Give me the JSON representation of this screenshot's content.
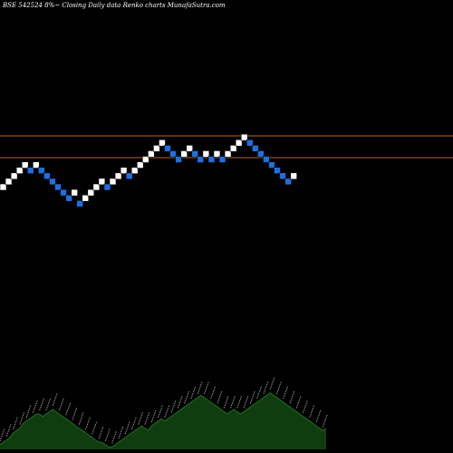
{
  "chart_data": {
    "type": "renko",
    "title": "BSE 542524  8%~ Closing Daily data  Renko  charts MunafaSutra.com",
    "colors": {
      "background": "#000000",
      "up_brick": "#ffffff",
      "down_brick": "#1e6fe0",
      "reference_line": "#b8641e",
      "volume_area": "#0f3d0f",
      "volume_line": "#1f6e1f",
      "label_text": "#dddddd"
    },
    "reference_lines": [
      1.05,
      1.0
    ],
    "bricks": [
      {
        "level": 0,
        "dir": "up"
      },
      {
        "level": 1,
        "dir": "up"
      },
      {
        "level": 2,
        "dir": "up"
      },
      {
        "level": 3,
        "dir": "up"
      },
      {
        "level": 4,
        "dir": "up"
      },
      {
        "level": 3,
        "dir": "down"
      },
      {
        "level": 4,
        "dir": "up"
      },
      {
        "level": 3,
        "dir": "down"
      },
      {
        "level": 2,
        "dir": "down"
      },
      {
        "level": 1,
        "dir": "down"
      },
      {
        "level": 0,
        "dir": "down"
      },
      {
        "level": -1,
        "dir": "down"
      },
      {
        "level": -2,
        "dir": "down"
      },
      {
        "level": -1,
        "dir": "up"
      },
      {
        "level": -3,
        "dir": "down"
      },
      {
        "level": -2,
        "dir": "up"
      },
      {
        "level": -1,
        "dir": "up"
      },
      {
        "level": 0,
        "dir": "up"
      },
      {
        "level": 1,
        "dir": "up"
      },
      {
        "level": 0,
        "dir": "down"
      },
      {
        "level": 1,
        "dir": "up"
      },
      {
        "level": 2,
        "dir": "up"
      },
      {
        "level": 3,
        "dir": "up"
      },
      {
        "level": 2,
        "dir": "down"
      },
      {
        "level": 3,
        "dir": "up"
      },
      {
        "level": 4,
        "dir": "up"
      },
      {
        "level": 5,
        "dir": "up"
      },
      {
        "level": 6,
        "dir": "up"
      },
      {
        "level": 7,
        "dir": "up"
      },
      {
        "level": 8,
        "dir": "up"
      },
      {
        "level": 7,
        "dir": "down"
      },
      {
        "level": 6,
        "dir": "down"
      },
      {
        "level": 5,
        "dir": "down"
      },
      {
        "level": 6,
        "dir": "up"
      },
      {
        "level": 7,
        "dir": "up"
      },
      {
        "level": 6,
        "dir": "down"
      },
      {
        "level": 5,
        "dir": "down"
      },
      {
        "level": 6,
        "dir": "up"
      },
      {
        "level": 5,
        "dir": "down"
      },
      {
        "level": 6,
        "dir": "up"
      },
      {
        "level": 5,
        "dir": "down"
      },
      {
        "level": 6,
        "dir": "up"
      },
      {
        "level": 7,
        "dir": "up"
      },
      {
        "level": 8,
        "dir": "up"
      },
      {
        "level": 9,
        "dir": "up"
      },
      {
        "level": 8,
        "dir": "down"
      },
      {
        "level": 7,
        "dir": "down"
      },
      {
        "level": 6,
        "dir": "down"
      },
      {
        "level": 5,
        "dir": "down"
      },
      {
        "level": 4,
        "dir": "down"
      },
      {
        "level": 3,
        "dir": "down"
      },
      {
        "level": 2,
        "dir": "down"
      },
      {
        "level": 1,
        "dir": "down"
      },
      {
        "level": 2,
        "dir": "up"
      }
    ],
    "volume_profile": [
      2,
      3,
      4,
      5,
      7,
      8,
      9,
      11,
      12,
      13,
      14,
      15,
      15,
      14,
      15,
      16,
      17,
      16,
      15,
      14,
      13,
      12,
      11,
      10,
      9,
      8,
      7,
      6,
      5,
      4,
      3,
      3,
      2,
      1,
      1,
      2,
      3,
      4,
      5,
      6,
      7,
      8,
      9,
      10,
      9,
      8,
      10,
      11,
      12,
      13,
      12,
      13,
      14,
      15,
      16,
      17,
      18,
      19,
      20,
      21,
      22,
      23,
      22,
      21,
      20,
      19,
      18,
      17,
      16,
      15,
      16,
      17,
      16,
      15,
      16,
      17,
      18,
      19,
      20,
      21,
      22,
      23,
      24,
      23,
      22,
      21,
      20,
      19,
      18,
      17,
      16,
      15,
      14,
      13,
      12,
      11,
      10,
      9,
      8,
      9
    ]
  }
}
